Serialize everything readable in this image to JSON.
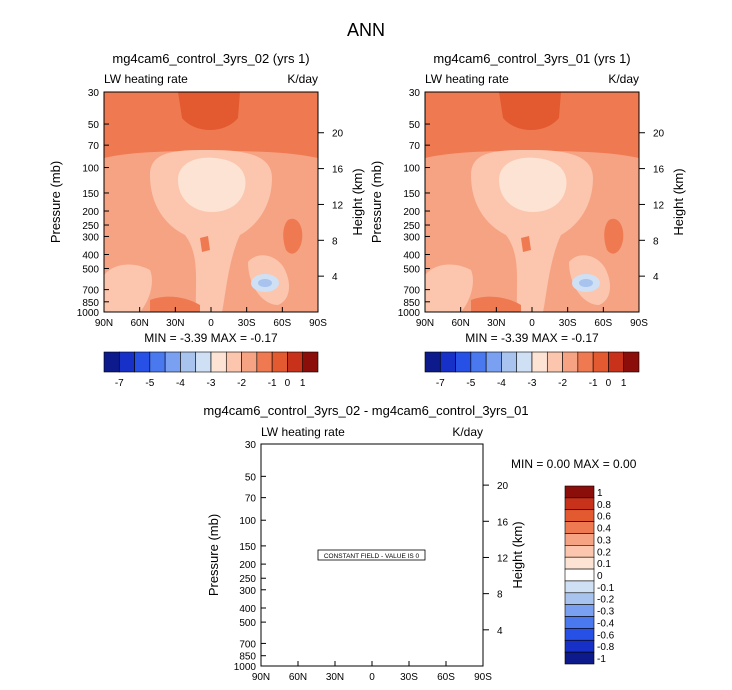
{
  "page_title": "ANN",
  "chart_data": [
    {
      "type": "heatmap",
      "title": "mg4cam6_control_3yrs_02 (yrs 1)",
      "field_label": "LW heating rate",
      "units": "K/day",
      "xlabel": "",
      "ylabel": "Pressure (mb)",
      "y2label": "Height (km)",
      "x_ticks": [
        "90N",
        "60N",
        "30N",
        "0",
        "30S",
        "60S",
        "90S"
      ],
      "y_ticks": [
        "30",
        "50",
        "70",
        "100",
        "150",
        "200",
        "250",
        "300",
        "400",
        "500",
        "700",
        "850",
        "1000"
      ],
      "y2_ticks": [
        "20",
        "16",
        "12",
        "8",
        "4"
      ],
      "stats": "MIN =  -3.39   MAX =  -0.17",
      "colorbar_ticks": [
        "-7",
        "-5",
        "-4",
        "-3",
        "-2",
        "-1",
        "0",
        "1"
      ]
    },
    {
      "type": "heatmap",
      "title": "mg4cam6_control_3yrs_01 (yrs 1)",
      "field_label": "LW heating rate",
      "units": "K/day",
      "xlabel": "",
      "ylabel": "Pressure (mb)",
      "y2label": "Height (km)",
      "x_ticks": [
        "90N",
        "60N",
        "30N",
        "0",
        "30S",
        "60S",
        "90S"
      ],
      "y_ticks": [
        "30",
        "50",
        "70",
        "100",
        "150",
        "200",
        "250",
        "300",
        "400",
        "500",
        "700",
        "850",
        "1000"
      ],
      "y2_ticks": [
        "20",
        "16",
        "12",
        "8",
        "4"
      ],
      "stats": "MIN =  -3.39   MAX =  -0.17",
      "colorbar_ticks": [
        "-7",
        "-5",
        "-4",
        "-3",
        "-2",
        "-1",
        "0",
        "1"
      ]
    },
    {
      "type": "heatmap",
      "title": "mg4cam6_control_3yrs_02 - mg4cam6_control_3yrs_01",
      "field_label": "LW heating rate",
      "units": "K/day",
      "xlabel": "",
      "ylabel": "Pressure (mb)",
      "y2label": "Height (km)",
      "x_ticks": [
        "90N",
        "60N",
        "30N",
        "0",
        "30S",
        "60S",
        "90S"
      ],
      "y_ticks": [
        "30",
        "50",
        "70",
        "100",
        "150",
        "200",
        "250",
        "300",
        "400",
        "500",
        "700",
        "850",
        "1000"
      ],
      "y2_ticks": [
        "20",
        "16",
        "12",
        "8",
        "4"
      ],
      "stats": "MIN =   0.00   MAX =   0.00",
      "constant_field_note": "CONSTANT FIELD - VALUE IS 0",
      "colorbar_ticks": [
        "1",
        "0.8",
        "0.6",
        "0.4",
        "0.3",
        "0.2",
        "0.1",
        "0",
        "-0.1",
        "-0.2",
        "-0.3",
        "-0.4",
        "-0.6",
        "-0.8",
        "-1"
      ]
    }
  ],
  "colors": {
    "field_mid": "#f6a384",
    "field_light": "#fbc6ad",
    "field_pale": "#fde3d4",
    "field_strong": "#ef7a52",
    "field_strongest": "#e45a30",
    "field_blue_light": "#cfe0f5",
    "field_blue": "#a7c3ee",
    "cb_main": [
      "#0c1a8c",
      "#1730c8",
      "#2650e6",
      "#4a78ef",
      "#7aa0f2",
      "#a7c3ee",
      "#cfe0f5",
      "#fde3d4",
      "#fbc6ad",
      "#f6a384",
      "#ef7a52",
      "#e45a30",
      "#c8321a",
      "#8c0e0a"
    ],
    "cb_diff": [
      "#8c0e0a",
      "#c8321a",
      "#e45a30",
      "#ef7a52",
      "#f6a384",
      "#fbc6ad",
      "#fde3d4",
      "#ffffff",
      "#cfe0f5",
      "#a7c3ee",
      "#7aa0f2",
      "#4a78ef",
      "#2650e6",
      "#1730c8",
      "#0c1a8c"
    ]
  }
}
